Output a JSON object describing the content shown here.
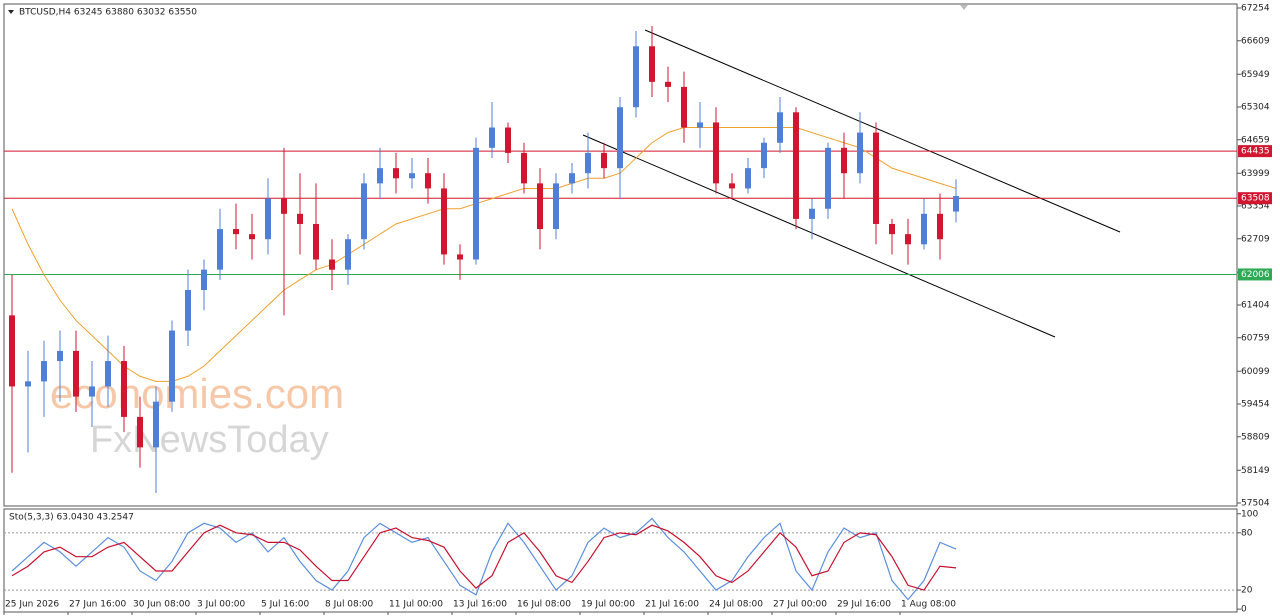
{
  "chart_data": [
    {
      "type": "candlestick",
      "title": "BTCUSD,H4  63245 63880 63032 63550",
      "categories": [
        "25 Jun 2026",
        null,
        null,
        null,
        "27 Jun 16:00",
        null,
        null,
        null,
        "30 Jun 08:00",
        null,
        null,
        null,
        "3 Jul 00:00",
        null,
        null,
        null,
        "5 Jul 16:00",
        null,
        null,
        null,
        "8 Jul 08:00",
        null,
        null,
        null,
        "11 Jul 00:00",
        null,
        null,
        null,
        "13 Jul 16:00",
        null,
        null,
        null,
        "16 Jul 08:00",
        null,
        null,
        null,
        "19 Jul 00:00",
        null,
        null,
        null,
        "21 Jul 16:00",
        null,
        null,
        null,
        "24 Jul 08:00",
        null,
        null,
        null,
        "27 Jul 00:00",
        null,
        null,
        null,
        "29 Jul 16:00",
        null,
        null,
        null,
        "1 Aug 08:00",
        null,
        null,
        null
      ],
      "open": [
        61200,
        59800,
        59900,
        60300,
        60500,
        59600,
        59800,
        60300,
        59200,
        58600,
        59500,
        60900,
        61700,
        62100,
        62900,
        62800,
        62700,
        63500,
        63200,
        63000,
        62300,
        62100,
        62700,
        63800,
        64100,
        63900,
        64000,
        63700,
        62400,
        62300,
        64500,
        64900,
        64400,
        63800,
        62900,
        63800,
        64000,
        64400,
        64100,
        65300,
        66500,
        65800,
        65700,
        64900,
        65000,
        63800,
        63700,
        64100,
        64600,
        65200,
        63100,
        63300,
        64500,
        64000,
        64800,
        63000,
        62800,
        62600,
        63200,
        63245
      ],
      "high": [
        62000,
        60500,
        60700,
        60900,
        60900,
        60300,
        60800,
        60600,
        59600,
        59800,
        61100,
        62100,
        62300,
        63300,
        63400,
        63200,
        63900,
        64500,
        64000,
        63800,
        62700,
        62800,
        64000,
        64500,
        64400,
        64300,
        64300,
        64000,
        62600,
        64700,
        65400,
        65000,
        64600,
        64100,
        64000,
        64200,
        64800,
        64600,
        65500,
        66800,
        66900,
        66100,
        66000,
        65400,
        65300,
        64000,
        64300,
        64700,
        65500,
        65300,
        63500,
        64600,
        64800,
        65200,
        65000,
        63100,
        63100,
        63500,
        63600,
        63880
      ],
      "low": [
        58100,
        58500,
        59200,
        59500,
        59300,
        59000,
        59400,
        58900,
        58200,
        57700,
        59300,
        60600,
        61300,
        61900,
        62500,
        62300,
        62400,
        61200,
        62400,
        62100,
        61700,
        61800,
        62500,
        63500,
        63600,
        63700,
        63400,
        62200,
        61900,
        62200,
        64300,
        64200,
        63600,
        62500,
        62700,
        63600,
        63700,
        63900,
        63500,
        65100,
        65500,
        65400,
        64600,
        64500,
        63600,
        63500,
        63600,
        63900,
        64400,
        62900,
        62700,
        63100,
        63500,
        63800,
        62600,
        62400,
        62200,
        62500,
        62300,
        63032
      ],
      "close": [
        59800,
        59900,
        60300,
        60500,
        59600,
        59800,
        60300,
        59200,
        58600,
        59500,
        60900,
        61700,
        62100,
        62900,
        62800,
        62700,
        63500,
        63200,
        63000,
        62300,
        62100,
        62700,
        63800,
        64100,
        63900,
        64000,
        63700,
        62400,
        62300,
        64500,
        64900,
        64400,
        63800,
        62900,
        63800,
        64000,
        64400,
        64100,
        65300,
        66500,
        65800,
        65700,
        64900,
        65000,
        63800,
        63700,
        64100,
        64600,
        65200,
        63100,
        63300,
        64500,
        64000,
        64800,
        63000,
        62800,
        62600,
        63200,
        62700,
        63550
      ],
      "up_color": "#4f7fd6",
      "down_color": "#d0172f",
      "ma_values": [
        63300,
        62600,
        62000,
        61500,
        61100,
        60800,
        60500,
        60200,
        60000,
        59900,
        59900,
        60000,
        60200,
        60500,
        60800,
        61100,
        61400,
        61700,
        61900,
        62100,
        62200,
        62400,
        62600,
        62800,
        63000,
        63100,
        63200,
        63300,
        63300,
        63400,
        63500,
        63600,
        63700,
        63700,
        63700,
        63800,
        63900,
        63900,
        64000,
        64300,
        64600,
        64800,
        64900,
        64900,
        64900,
        64900,
        64900,
        64900,
        64900,
        64900,
        64800,
        64700,
        64600,
        64500,
        64300,
        64100,
        64000,
        63900,
        63800,
        63700
      ],
      "ma_color": "#f0a030",
      "levels": [
        {
          "value": 64435,
          "color": "#d0172f"
        },
        {
          "value": 63508,
          "color": "#d0172f"
        },
        {
          "value": 62006,
          "color": "#2eaa55"
        }
      ],
      "ylim": [
        57445,
        67333
      ],
      "yticks": [
        67254,
        66609,
        65949,
        65304,
        64659,
        63999,
        63354,
        62709,
        62049,
        61404,
        60759,
        60099,
        59454,
        58809,
        58149,
        57504
      ],
      "watermark": [
        "economies.com",
        "FxNewsToday"
      ]
    },
    {
      "type": "line",
      "title": "Sto(5,3,3) 63.0430 43.2547",
      "series": [
        {
          "color": "#5b8fdc",
          "values": [
            40,
            55,
            70,
            60,
            45,
            60,
            75,
            65,
            40,
            30,
            50,
            80,
            90,
            85,
            70,
            80,
            60,
            75,
            50,
            30,
            20,
            40,
            75,
            90,
            80,
            70,
            75,
            50,
            25,
            15,
            60,
            90,
            70,
            45,
            20,
            35,
            70,
            85,
            75,
            80,
            95,
            75,
            60,
            40,
            20,
            30,
            55,
            75,
            90,
            40,
            20,
            60,
            85,
            75,
            80,
            30,
            10,
            30,
            70,
            63.043
          ]
        },
        {
          "color": "#c8102e",
          "values": [
            35,
            45,
            60,
            65,
            55,
            55,
            65,
            70,
            55,
            40,
            40,
            60,
            80,
            88,
            80,
            78,
            70,
            70,
            62,
            45,
            30,
            30,
            55,
            80,
            85,
            75,
            72,
            65,
            40,
            22,
            35,
            70,
            80,
            60,
            35,
            28,
            50,
            75,
            80,
            78,
            88,
            82,
            70,
            55,
            35,
            28,
            40,
            60,
            80,
            65,
            35,
            40,
            70,
            80,
            78,
            55,
            25,
            20,
            45,
            43.2547
          ]
        }
      ],
      "levels": [
        80,
        20
      ],
      "ylim": [
        -3,
        105
      ],
      "yticks": [
        100,
        80,
        20,
        0
      ]
    }
  ]
}
